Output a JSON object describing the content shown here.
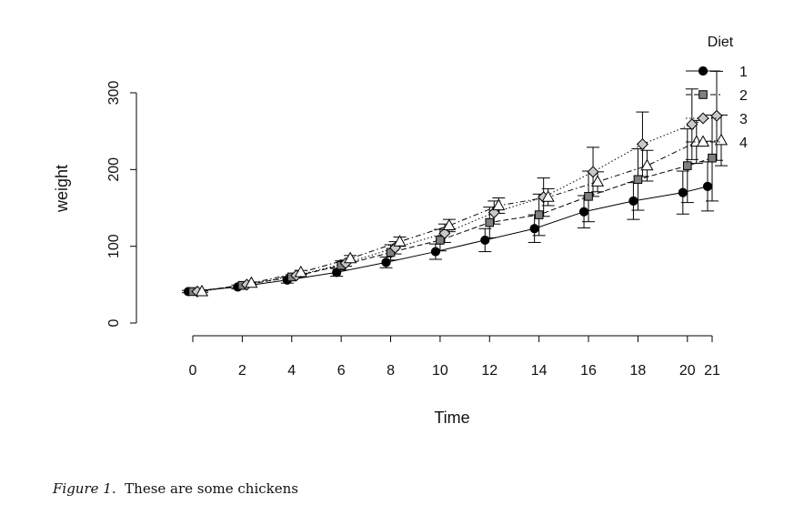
{
  "caption": {
    "figure_label": "Figure 1",
    "separator": ".",
    "text": "These are some chickens"
  },
  "chart_data": {
    "type": "line",
    "xlabel": "Time",
    "ylabel": "weight",
    "x_tick_labels": [
      "0",
      "2",
      "4",
      "6",
      "8",
      "10",
      "12",
      "14",
      "16",
      "18",
      "20",
      "21"
    ],
    "y_ticks": [
      0,
      100,
      200,
      300
    ],
    "ylim": [
      0,
      300
    ],
    "grid": false,
    "error_bars": true,
    "legend": {
      "title": "Diet",
      "position": "top-right"
    },
    "series": [
      {
        "name": "1",
        "marker": "circle",
        "fill": "#000000",
        "line_style": "solid",
        "values": [
          41,
          47,
          56,
          66,
          79,
          93,
          108,
          123,
          145,
          159,
          170,
          178
        ],
        "error": [
          1.5,
          2.5,
          4,
          5,
          7,
          10,
          15,
          18,
          21,
          24,
          28,
          32
        ]
      },
      {
        "name": "2",
        "marker": "square",
        "fill": "#808080",
        "line_style": "dashed",
        "values": [
          41,
          49,
          60,
          75,
          92,
          108,
          131,
          141,
          165,
          187,
          205,
          215
        ],
        "error": [
          1,
          2,
          3,
          6,
          10,
          14,
          20,
          27,
          33,
          40,
          48,
          56
        ]
      },
      {
        "name": "3",
        "marker": "diamond",
        "fill": "#c8c8c8",
        "line_style": "dotted",
        "values": [
          41,
          50,
          62,
          78,
          98,
          117,
          144,
          164,
          197,
          233,
          259,
          270
        ],
        "error": [
          1,
          1.5,
          2.5,
          4,
          8,
          12,
          15,
          25,
          32,
          42,
          46,
          58
        ]
      },
      {
        "name": "4",
        "marker": "triangle",
        "fill": "#ffffff",
        "line_style": "dotdash",
        "values": [
          41,
          52,
          66,
          84,
          106,
          127,
          153,
          164,
          184,
          205,
          236,
          238
        ],
        "error": [
          1,
          1.5,
          2.5,
          4,
          6,
          8,
          10,
          11,
          13,
          20,
          28,
          33
        ]
      }
    ]
  }
}
